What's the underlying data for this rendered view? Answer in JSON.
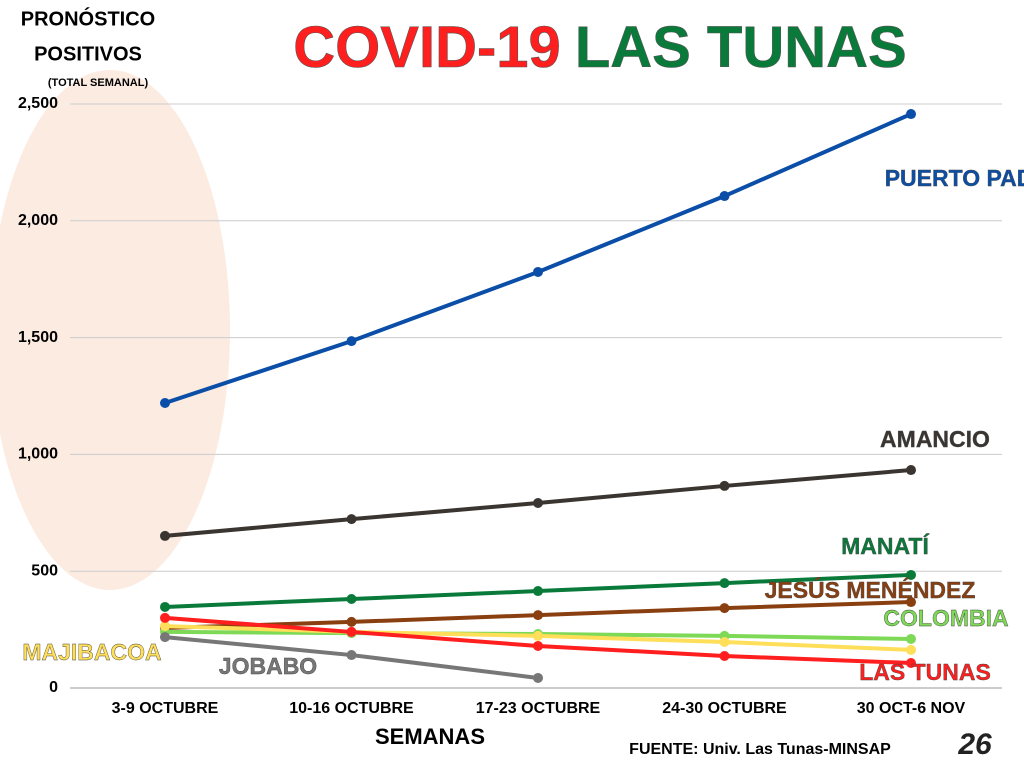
{
  "chart_data": {
    "type": "line",
    "title": [
      "COVID-19",
      "LAS TUNAS"
    ],
    "title_colors": [
      "#ff1f1f",
      "#0a7a3a"
    ],
    "y_label": [
      "PRONÓSTICO",
      "POSITIVOS",
      "(TOTAL SEMANAL)"
    ],
    "x_label": "SEMANAS",
    "source": "FUENTE: Univ. Las Tunas-MINSAP",
    "logo": "26",
    "categories": [
      "3-9 OCTUBRE",
      "10-16 OCTUBRE",
      "17-23 OCTUBRE",
      "24-30 OCTUBRE",
      "30 OCT-6 NOV"
    ],
    "ylim": [
      0,
      2500
    ],
    "yticks": [
      0,
      500,
      {
        "value": 1000,
        "label": "1,000"
      },
      {
        "value": 1500,
        "label": "1,500"
      },
      {
        "value": 2000,
        "label": "2,000"
      },
      {
        "value": 2500,
        "label": "2,500"
      }
    ],
    "grid": true,
    "series": [
      {
        "name": "PUERTO PADRE",
        "color": "#0a4ea8",
        "values": [
          1220,
          1485,
          1781,
          2106,
          2457
        ]
      },
      {
        "name": "AMANCIO",
        "color": "#3a3530",
        "values": [
          651,
          723,
          792,
          865,
          933
        ]
      },
      {
        "name": "MANATÍ",
        "color": "#0a7a3a",
        "values": [
          347,
          381,
          415,
          449,
          484
        ]
      },
      {
        "name": "JESÚS MENÉNDEZ",
        "color": "#8a3f10",
        "values": [
          257,
          283,
          312,
          342,
          368
        ]
      },
      {
        "name": "COLOMBIA",
        "color": "#7ed957",
        "values": [
          240,
          235,
          231,
          223,
          210
        ]
      },
      {
        "name": "MAJIBACOA",
        "color": "#ffde59",
        "values": [
          265,
          240,
          223,
          197,
          163
        ]
      },
      {
        "name": "LAS TUNAS",
        "color": "#ff1f1f",
        "values": [
          300,
          240,
          180,
          137,
          107
        ]
      },
      {
        "name": "JOBABO",
        "color": "#777777",
        "values": [
          218,
          141,
          43,
          null,
          null
        ]
      }
    ]
  }
}
